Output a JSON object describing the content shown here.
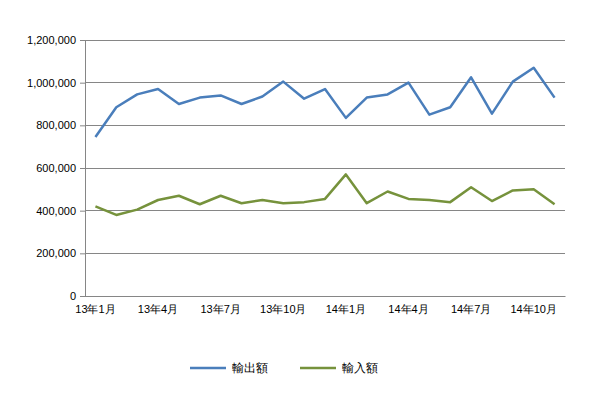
{
  "chart_data": {
    "type": "line",
    "categories": [
      "13年1月",
      null,
      null,
      "13年4月",
      null,
      null,
      "13年7月",
      null,
      null,
      "13年10月",
      null,
      null,
      "14年1月",
      null,
      null,
      "14年4月",
      null,
      null,
      "14年7月",
      null,
      null,
      "14年10月",
      null
    ],
    "series": [
      {
        "name": "輸出額",
        "color": "#4a7ebb",
        "values": [
          745000,
          885000,
          945000,
          970000,
          900000,
          930000,
          940000,
          900000,
          935000,
          1005000,
          925000,
          970000,
          835000,
          930000,
          945000,
          1000000,
          850000,
          885000,
          1025000,
          855000,
          1005000,
          1070000,
          930000
        ]
      },
      {
        "name": "輸入額",
        "color": "#76923c",
        "values": [
          420000,
          380000,
          405000,
          450000,
          470000,
          430000,
          470000,
          435000,
          450000,
          435000,
          440000,
          455000,
          570000,
          435000,
          490000,
          455000,
          450000,
          440000,
          510000,
          445000,
          495000,
          500000,
          430000
        ]
      }
    ],
    "ylim": [
      0,
      1200000
    ],
    "yticks": [
      0,
      {
        "value": 200000,
        "label": "200,000"
      },
      {
        "value": 400000,
        "label": "400,000"
      },
      {
        "value": 600000,
        "label": "600,000"
      },
      {
        "value": 800000,
        "label": "800,000"
      },
      {
        "value": 1000000,
        "label": "1,000,000"
      },
      {
        "value": 1200000,
        "label": "1,200,000"
      }
    ],
    "grid": true,
    "legend": "bottom"
  }
}
